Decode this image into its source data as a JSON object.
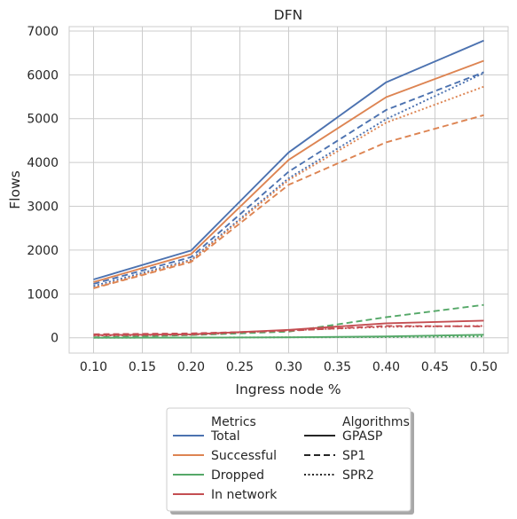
{
  "chart_data": {
    "type": "line",
    "title": "DFN",
    "xlabel": "Ingress node %",
    "ylabel": "Flows",
    "x": [
      0.1,
      0.2,
      0.3,
      0.4,
      0.5
    ],
    "xticks": [
      "0.10",
      "0.15",
      "0.20",
      "0.25",
      "0.30",
      "0.35",
      "0.40",
      "0.45",
      "0.50"
    ],
    "yticks": [
      "0",
      "1000",
      "2000",
      "3000",
      "4000",
      "5000",
      "6000",
      "7000"
    ],
    "xlim": [
      0.075,
      0.525
    ],
    "ylim": [
      -350,
      7100
    ],
    "grid": true,
    "legend_placement": "below",
    "legend": {
      "metrics_title": "Metrics",
      "algorithms_title": "Algorithms",
      "metrics": [
        {
          "label": "Total",
          "color": "#4c72b0"
        },
        {
          "label": "Successful",
          "color": "#dd8452"
        },
        {
          "label": "Dropped",
          "color": "#55a868"
        },
        {
          "label": "In network",
          "color": "#c44e52"
        }
      ],
      "algorithms": [
        {
          "label": "GPASP",
          "style": "solid"
        },
        {
          "label": "SP1",
          "style": "dashed"
        },
        {
          "label": "SPR2",
          "style": "dotted"
        }
      ]
    },
    "series": [
      {
        "metric": "Total",
        "algorithm": "GPASP",
        "color": "#4c72b0",
        "style": "solid",
        "values": [
          1330,
          1990,
          4230,
          5830,
          6780
        ]
      },
      {
        "metric": "Total",
        "algorithm": "SP1",
        "color": "#4c72b0",
        "style": "dashed",
        "values": [
          1230,
          1840,
          3790,
          5200,
          6060
        ]
      },
      {
        "metric": "Total",
        "algorithm": "SPR2",
        "color": "#4c72b0",
        "style": "dotted",
        "values": [
          1180,
          1780,
          3640,
          4990,
          6040
        ]
      },
      {
        "metric": "Successful",
        "algorithm": "GPASP",
        "color": "#dd8452",
        "style": "solid",
        "values": [
          1270,
          1910,
          4060,
          5490,
          6320
        ]
      },
      {
        "metric": "Successful",
        "algorithm": "SP1",
        "color": "#dd8452",
        "style": "dashed",
        "values": [
          1130,
          1730,
          3490,
          4460,
          5080
        ]
      },
      {
        "metric": "Successful",
        "algorithm": "SPR2",
        "color": "#dd8452",
        "style": "dotted",
        "values": [
          1140,
          1760,
          3600,
          4910,
          5730
        ]
      },
      {
        "metric": "Dropped",
        "algorithm": "GPASP",
        "color": "#55a868",
        "style": "solid",
        "values": [
          0,
          5,
          10,
          30,
          70
        ]
      },
      {
        "metric": "Dropped",
        "algorithm": "SP1",
        "color": "#55a868",
        "style": "dashed",
        "values": [
          10,
          60,
          140,
          470,
          750
        ]
      },
      {
        "metric": "Dropped",
        "algorithm": "SPR2",
        "color": "#55a868",
        "style": "dotted",
        "values": [
          0,
          5,
          10,
          15,
          30
        ]
      },
      {
        "metric": "In network",
        "algorithm": "GPASP",
        "color": "#c44e52",
        "style": "solid",
        "values": [
          60,
          80,
          180,
          330,
          390
        ]
      },
      {
        "metric": "In network",
        "algorithm": "SP1",
        "color": "#c44e52",
        "style": "dashed",
        "values": [
          80,
          100,
          160,
          270,
          260
        ]
      },
      {
        "metric": "In network",
        "algorithm": "SPR2",
        "color": "#c44e52",
        "style": "dotted",
        "values": [
          50,
          70,
          170,
          250,
          270
        ]
      }
    ]
  }
}
